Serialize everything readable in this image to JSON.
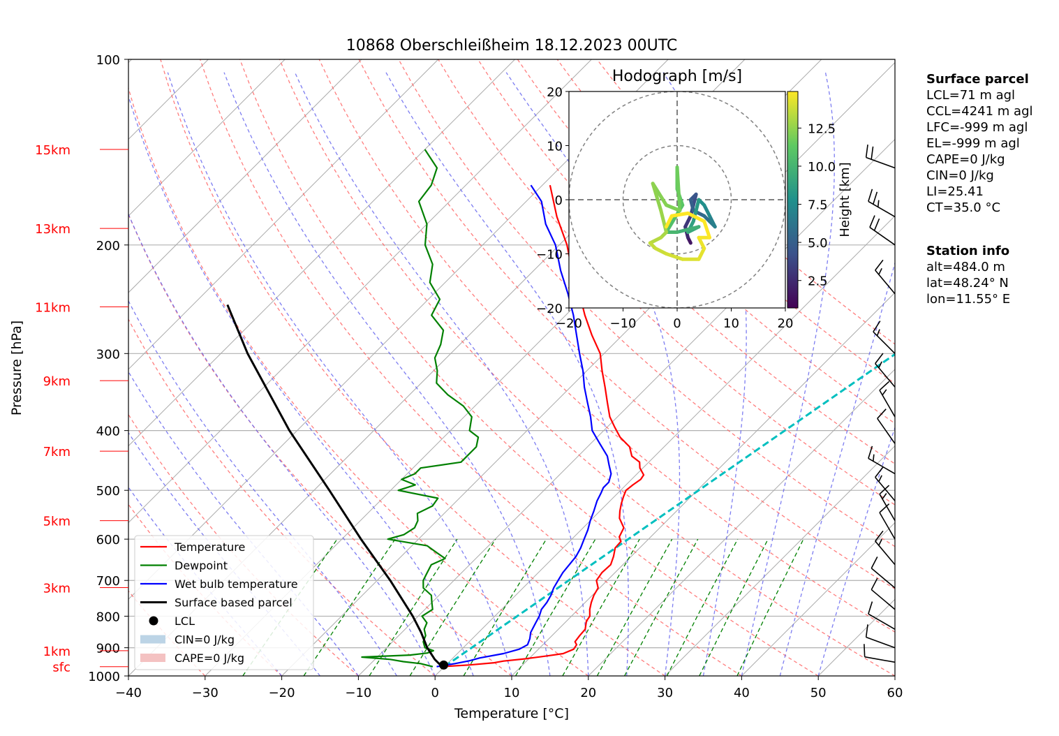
{
  "chart_data": {
    "type": "skew-t",
    "title": "10868 Oberschleißheim 18.12.2023 00UTC",
    "xlabel": "Temperature [°C]",
    "ylabel": "Pressure [hPa]",
    "xlim": [
      -40,
      60
    ],
    "ylim": [
      1000,
      100
    ],
    "x_ticks": [
      "−40",
      "−30",
      "−20",
      "−10",
      "0",
      "10",
      "20",
      "30",
      "40",
      "50",
      "60"
    ],
    "y_ticks": [
      "100",
      "200",
      "300",
      "400",
      "500",
      "600",
      "700",
      "800",
      "900",
      "1000"
    ],
    "height_labels": [
      {
        "label": "sfc",
        "p": 966
      },
      {
        "label": "1km",
        "p": 910
      },
      {
        "label": "3km",
        "p": 719
      },
      {
        "label": "5km",
        "p": 560
      },
      {
        "label": "7km",
        "p": 432
      },
      {
        "label": "9km",
        "p": 332
      },
      {
        "label": "11km",
        "p": 252
      },
      {
        "label": "13km",
        "p": 188
      },
      {
        "label": "15km",
        "p": 140
      }
    ],
    "series": [
      {
        "name": "Temperature",
        "color": "#ff0000",
        "points": [
          [
            966,
            -0.5
          ],
          [
            960,
            3
          ],
          [
            952,
            6
          ],
          [
            946,
            7
          ],
          [
            938,
            9.5
          ],
          [
            928,
            12
          ],
          [
            920,
            13.8
          ],
          [
            905,
            14.6
          ],
          [
            890,
            14.4
          ],
          [
            880,
            13.8
          ],
          [
            860,
            13.6
          ],
          [
            840,
            13.5
          ],
          [
            815,
            12.6
          ],
          [
            800,
            12.4
          ],
          [
            780,
            11.5
          ],
          [
            760,
            10.8
          ],
          [
            740,
            10.2
          ],
          [
            720,
            9.8
          ],
          [
            700,
            8.6
          ],
          [
            680,
            8.3
          ],
          [
            660,
            8.4
          ],
          [
            640,
            7.7
          ],
          [
            620,
            6.8
          ],
          [
            605,
            6.7
          ],
          [
            595,
            5.9
          ],
          [
            575,
            5.3
          ],
          [
            555,
            3.5
          ],
          [
            540,
            2.6
          ],
          [
            525,
            1.8
          ],
          [
            512,
            1.2
          ],
          [
            500,
            0.7
          ],
          [
            490,
            0.9
          ],
          [
            480,
            1.2
          ],
          [
            472,
            1.0
          ],
          [
            460,
            -0.4
          ],
          [
            450,
            -1.2
          ],
          [
            440,
            -3.0
          ],
          [
            425,
            -4.5
          ],
          [
            410,
            -7.0
          ],
          [
            395,
            -9.0
          ],
          [
            380,
            -11.0
          ],
          [
            360,
            -13.2
          ],
          [
            340,
            -15.5
          ],
          [
            320,
            -18.0
          ],
          [
            300,
            -20.5
          ],
          [
            280,
            -24.0
          ],
          [
            260,
            -27.5
          ],
          [
            240,
            -31.0
          ],
          [
            220,
            -35.0
          ],
          [
            200,
            -39.0
          ],
          [
            180,
            -44.0
          ],
          [
            160,
            -49.0
          ]
        ]
      },
      {
        "name": "Dewpoint",
        "color": "#008000",
        "points": [
          [
            966,
            -1.5
          ],
          [
            955,
            -3.5
          ],
          [
            948,
            -6.0
          ],
          [
            940,
            -8.0
          ],
          [
            932,
            -12.0
          ],
          [
            925,
            -6.0
          ],
          [
            918,
            -4.0
          ],
          [
            910,
            -3.5
          ],
          [
            900,
            -5.0
          ],
          [
            880,
            -6.0
          ],
          [
            860,
            -6.5
          ],
          [
            840,
            -7.5
          ],
          [
            820,
            -8.0
          ],
          [
            800,
            -9.5
          ],
          [
            780,
            -9.0
          ],
          [
            760,
            -10.0
          ],
          [
            740,
            -11.0
          ],
          [
            720,
            -13.0
          ],
          [
            700,
            -14.0
          ],
          [
            680,
            -14.5
          ],
          [
            660,
            -15.0
          ],
          [
            645,
            -14.0
          ],
          [
            630,
            -16.0
          ],
          [
            615,
            -18.0
          ],
          [
            600,
            -24.0
          ],
          [
            590,
            -22.5
          ],
          [
            575,
            -22.0
          ],
          [
            560,
            -22.5
          ],
          [
            545,
            -23.5
          ],
          [
            530,
            -22.5
          ],
          [
            515,
            -22.8
          ],
          [
            500,
            -29.0
          ],
          [
            490,
            -27.5
          ],
          [
            480,
            -30.0
          ],
          [
            470,
            -29.0
          ],
          [
            460,
            -29.0
          ],
          [
            450,
            -24.5
          ],
          [
            440,
            -24.5
          ],
          [
            425,
            -24.5
          ],
          [
            410,
            -25.5
          ],
          [
            400,
            -27.5
          ],
          [
            380,
            -29.0
          ],
          [
            365,
            -31.5
          ],
          [
            350,
            -35.0
          ],
          [
            335,
            -38.0
          ],
          [
            320,
            -39.5
          ],
          [
            305,
            -41.5
          ],
          [
            290,
            -42.5
          ],
          [
            275,
            -44.0
          ],
          [
            260,
            -47.5
          ],
          [
            245,
            -48.5
          ],
          [
            230,
            -52.0
          ],
          [
            215,
            -54.0
          ],
          [
            200,
            -57.5
          ],
          [
            185,
            -60.0
          ],
          [
            170,
            -64.0
          ],
          [
            160,
            -64.5
          ],
          [
            150,
            -66.0
          ],
          [
            140,
            -70.0
          ]
        ]
      },
      {
        "name": "Wet bulb temperature",
        "color": "#0000ff",
        "points": [
          [
            966,
            -1.0
          ],
          [
            955,
            1.0
          ],
          [
            945,
            2.5
          ],
          [
            935,
            3.5
          ],
          [
            920,
            6.0
          ],
          [
            905,
            7.5
          ],
          [
            890,
            8.0
          ],
          [
            870,
            7.5
          ],
          [
            850,
            6.8
          ],
          [
            820,
            6.2
          ],
          [
            800,
            5.8
          ],
          [
            780,
            5.2
          ],
          [
            760,
            5.0
          ],
          [
            740,
            4.6
          ],
          [
            720,
            4.0
          ],
          [
            700,
            3.6
          ],
          [
            680,
            3.2
          ],
          [
            660,
            3.0
          ],
          [
            640,
            2.8
          ],
          [
            620,
            2.3
          ],
          [
            600,
            1.6
          ],
          [
            580,
            0.9
          ],
          [
            560,
            0.0
          ],
          [
            540,
            -0.8
          ],
          [
            520,
            -1.7
          ],
          [
            505,
            -2.2
          ],
          [
            495,
            -2.6
          ],
          [
            485,
            -2.6
          ],
          [
            470,
            -3.4
          ],
          [
            455,
            -4.8
          ],
          [
            440,
            -6.2
          ],
          [
            420,
            -8.8
          ],
          [
            400,
            -11.5
          ],
          [
            380,
            -13.5
          ],
          [
            360,
            -15.8
          ],
          [
            340,
            -18.2
          ],
          [
            320,
            -20.5
          ],
          [
            300,
            -23.2
          ],
          [
            280,
            -26.0
          ],
          [
            260,
            -29.0
          ],
          [
            240,
            -32.5
          ],
          [
            220,
            -36.5
          ],
          [
            200,
            -40.5
          ],
          [
            185,
            -44.5
          ],
          [
            170,
            -48.0
          ],
          [
            160,
            -51.5
          ]
        ]
      },
      {
        "name": "Surface based parcel",
        "color": "#000000",
        "points": [
          [
            966,
            -0.3
          ],
          [
            940,
            -2.2
          ],
          [
            900,
            -4.7
          ],
          [
            850,
            -7.5
          ],
          [
            800,
            -10.7
          ],
          [
            700,
            -18.3
          ],
          [
            600,
            -27.5
          ],
          [
            500,
            -38.0
          ],
          [
            400,
            -51.0
          ],
          [
            300,
            -66.5
          ],
          [
            250,
            -75.5
          ]
        ]
      }
    ],
    "lcl": {
      "name": "LCL",
      "p": 960,
      "t": -0.3
    },
    "cin_label": "CIN=0 J/kg",
    "cape_label": "CAPE=0 J/kg",
    "wind_barbs": [
      {
        "p": 150,
        "speed": 20,
        "dir": 290
      },
      {
        "p": 180,
        "speed": 25,
        "dir": 300
      },
      {
        "p": 200,
        "speed": 20,
        "dir": 305
      },
      {
        "p": 240,
        "speed": 15,
        "dir": 320
      },
      {
        "p": 300,
        "speed": 15,
        "dir": 315
      },
      {
        "p": 340,
        "speed": 15,
        "dir": 320
      },
      {
        "p": 380,
        "speed": 15,
        "dir": 330
      },
      {
        "p": 420,
        "speed": 10,
        "dir": 325
      },
      {
        "p": 470,
        "speed": 15,
        "dir": 300
      },
      {
        "p": 520,
        "speed": 15,
        "dir": 320
      },
      {
        "p": 560,
        "speed": 15,
        "dir": 330
      },
      {
        "p": 600,
        "speed": 10,
        "dir": 330
      },
      {
        "p": 660,
        "speed": 15,
        "dir": 320
      },
      {
        "p": 720,
        "speed": 10,
        "dir": 310
      },
      {
        "p": 780,
        "speed": 10,
        "dir": 310
      },
      {
        "p": 840,
        "speed": 10,
        "dir": 300
      },
      {
        "p": 900,
        "speed": 10,
        "dir": 290
      },
      {
        "p": 950,
        "speed": 10,
        "dir": 280
      }
    ],
    "legend_position": "lower-left",
    "legend": [
      "Temperature",
      "Dewpoint",
      "Wet bulb temperature",
      "Surface based parcel",
      "LCL",
      "CIN=0 J/kg",
      "CAPE=0 J/kg"
    ],
    "grid": true
  },
  "hodograph": {
    "title": "Hodograph [m/s]",
    "xlim": [
      -20,
      20
    ],
    "ylim": [
      -20,
      20
    ],
    "x_ticks": [
      "−20",
      "−10",
      "0",
      "10",
      "20"
    ],
    "y_ticks": [
      "20",
      "10",
      "0",
      "−10",
      "−20"
    ],
    "colorbar_label": "Height [km]",
    "colorbar_ticks": [
      "2.5",
      "5.0",
      "7.5",
      "10.0",
      "12.5"
    ],
    "rings": [
      10,
      20
    ],
    "track": [
      [
        2.5,
        -8,
        0.5
      ],
      [
        2,
        -7,
        1
      ],
      [
        1.5,
        -5,
        1.8
      ],
      [
        2.5,
        -3,
        2.5
      ],
      [
        3,
        -1,
        3
      ],
      [
        3.5,
        1,
        3.5
      ],
      [
        2.5,
        0,
        4
      ],
      [
        3,
        -2,
        4.5
      ],
      [
        5,
        -3,
        5
      ],
      [
        6,
        -4,
        5.5
      ],
      [
        7,
        -5,
        6
      ],
      [
        6,
        -3,
        6.5
      ],
      [
        5,
        -1,
        7
      ],
      [
        4,
        0,
        7.5
      ],
      [
        3,
        -4,
        8
      ],
      [
        2,
        -6,
        8.5
      ],
      [
        4,
        -5,
        9
      ],
      [
        0,
        -6,
        9.5
      ],
      [
        -2,
        -6,
        10
      ],
      [
        1,
        -1,
        10.5
      ],
      [
        0,
        2,
        11
      ],
      [
        0,
        6,
        11.3
      ],
      [
        0.5,
        -2,
        11.6
      ],
      [
        -2,
        -1,
        12
      ],
      [
        -4.5,
        3,
        12.2
      ],
      [
        -3,
        -2,
        12.4
      ],
      [
        -2,
        -6,
        12.7
      ],
      [
        -3,
        -7,
        13
      ],
      [
        -5,
        -8,
        13.3
      ],
      [
        -4,
        -9,
        13.6
      ],
      [
        -2,
        -10,
        13.8
      ],
      [
        1,
        -11,
        14
      ],
      [
        4,
        -11,
        14.2
      ],
      [
        5,
        -9,
        14.4
      ],
      [
        4,
        -7,
        14.6
      ],
      [
        6,
        -7,
        14.8
      ],
      [
        5,
        -4,
        15
      ],
      [
        2,
        -2.5,
        15
      ],
      [
        -1,
        -3,
        15
      ],
      [
        -2,
        -5,
        15
      ]
    ]
  },
  "surface_parcel": {
    "heading": "Surface parcel",
    "lines": [
      "LCL=71 m agl",
      "CCL=4241 m agl",
      "LFC=-999 m agl",
      "EL=-999 m agl",
      "CAPE=0 J/kg",
      "CIN=0 J/kg",
      "LI=25.41",
      "CT=35.0 °C"
    ]
  },
  "station_info": {
    "heading": "Station info",
    "lines": [
      "alt=484.0 m",
      "lat=48.24° N",
      "lon=11.55° E"
    ]
  },
  "colors": {
    "temperature": "#ff0000",
    "dewpoint": "#008000",
    "wetbulb": "#0000ff",
    "parcel": "#000000",
    "height_label": "#ff0000",
    "dry_adiabat": "#ff6666",
    "moist_adiabat": "#6666ee",
    "mixing_ratio": "#008000",
    "ccl_line": "#00bfbf"
  }
}
